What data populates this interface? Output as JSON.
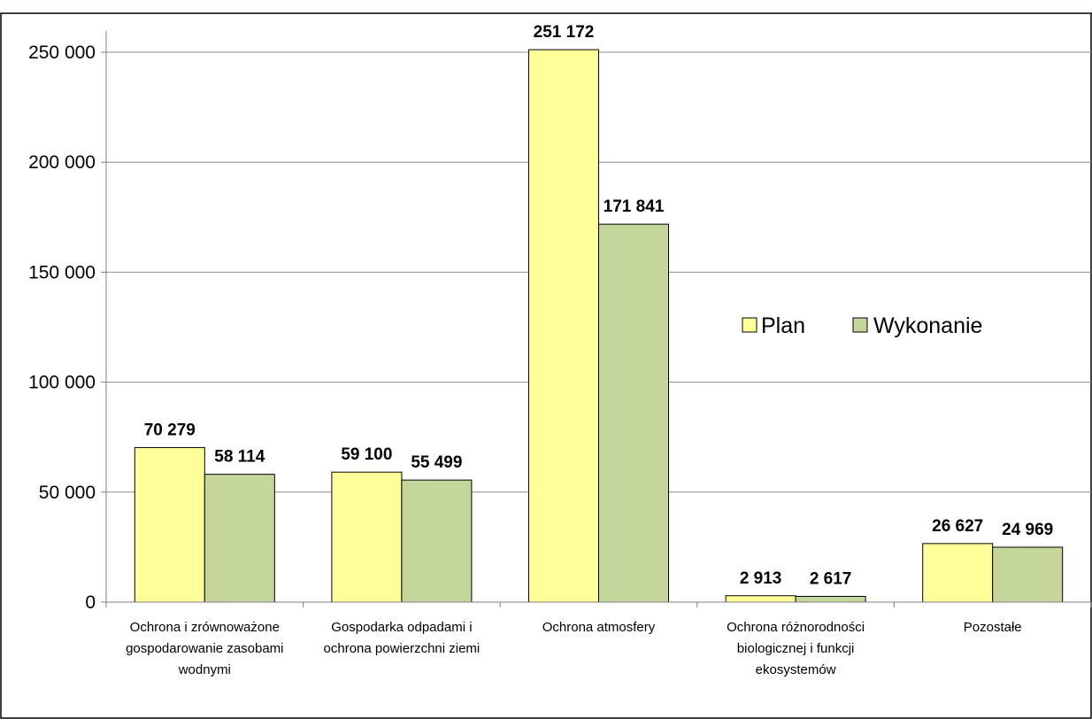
{
  "chart_data": {
    "type": "bar",
    "categories": [
      [
        "Ochrona i zrównoważone",
        "gospodarowanie zasobami",
        "wodnymi"
      ],
      [
        "Gospodarka odpadami i",
        "ochrona powierzchni ziemi"
      ],
      [
        "Ochrona atmosfery"
      ],
      [
        "Ochrona różnorodności",
        "biologicznej i funkcji",
        "ekosystemów"
      ],
      [
        "Pozostałe"
      ]
    ],
    "series": [
      {
        "name": "Plan",
        "values": [
          70279,
          59100,
          251172,
          2913,
          26627
        ],
        "labels": [
          "70 279",
          "59 100",
          "251 172",
          "2 913",
          "26 627"
        ],
        "color": "#ffff99"
      },
      {
        "name": "Wykonanie",
        "values": [
          58114,
          55499,
          171841,
          2617,
          24969
        ],
        "labels": [
          "58 114",
          "55 499",
          "171 841",
          "2 617",
          "24 969"
        ],
        "color": "#c4d79b"
      }
    ],
    "ylim": [
      0,
      250000
    ],
    "yticks": [
      0,
      50000,
      100000,
      150000,
      200000,
      250000
    ],
    "ytick_labels": [
      "0",
      "50 000",
      "100 000",
      "150 000",
      "200 000",
      "250 000"
    ],
    "grid": true,
    "legend_position": "right-center",
    "title": "",
    "xlabel": "",
    "ylabel": ""
  }
}
